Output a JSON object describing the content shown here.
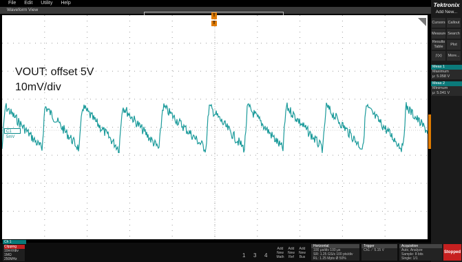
{
  "menu": [
    "File",
    "Edit",
    "Utility",
    "Help"
  ],
  "window_title": "Waveform View",
  "annotation": {
    "line1": "VOUT: offset 5V",
    "line2": "10mV/div"
  },
  "trigger_marker": "T",
  "trigger_marker_small": "T",
  "channel_flag": "C1 5mV",
  "brand": "Tektronix",
  "add_new": "Add New...",
  "side_buttons": [
    [
      "Cursors",
      "Callout"
    ],
    [
      "Measure",
      "Search"
    ],
    [
      "Results Table",
      "Plot"
    ],
    [
      "ƒ(x)",
      "More..."
    ]
  ],
  "meas1": {
    "title": "Meas 1",
    "name": "Maximum",
    "value": "μ: 5.058 V"
  },
  "meas2": {
    "title": "Meas 2",
    "name": "Minimum",
    "value": "μ: 5.041 V"
  },
  "ch1": {
    "badge": "Ch 1",
    "status": "Clipping",
    "scale": "10mV/div",
    "impedance": "1MΩ",
    "bandwidth": "250MHz"
  },
  "channel_buttons": [
    "1",
    "3",
    "4"
  ],
  "add_buttons": [
    [
      "Add",
      "New",
      "Math"
    ],
    [
      "Add",
      "New",
      "Ref"
    ],
    [
      "Add",
      "New",
      "Bus"
    ]
  ],
  "horizontal": {
    "title": "Horizontal",
    "row1": [
      "100 μs/div",
      "100 μs"
    ],
    "row2": [
      "SR: 1.25 GS/s",
      "100 pts/div"
    ],
    "row3": [
      "RL: 1.25 Mpts",
      "Ø 50%"
    ]
  },
  "trigger": {
    "title": "Trigger",
    "row1": "Ch1 ⟋ 5.15 V"
  },
  "acquisition": {
    "title": "Acquisition",
    "row1": [
      "Auto,",
      "Analyze"
    ],
    "row2": "Sample: 8 bits",
    "row3": "Single: 1/1"
  },
  "run_state": "Stopped"
}
